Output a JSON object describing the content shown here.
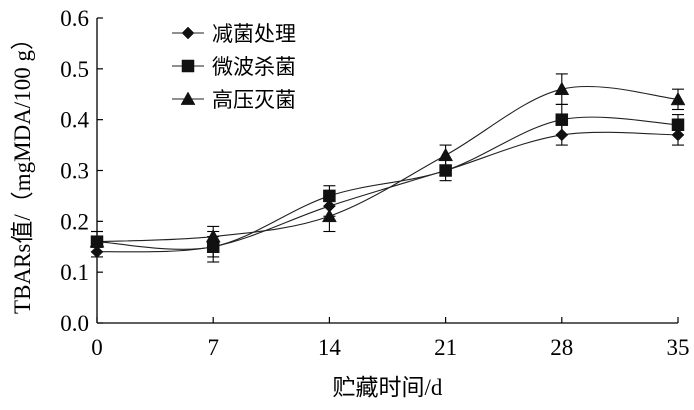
{
  "chart_data": {
    "type": "line",
    "x": [
      0,
      7,
      14,
      21,
      28,
      35
    ],
    "xlabel": "贮藏时间/d",
    "ylabel": "TBARs值/（mgMDA/100 g）",
    "xlim": [
      0,
      35
    ],
    "ylim": [
      0.0,
      0.6
    ],
    "xticks": [
      "0",
      "7",
      "14",
      "21",
      "28",
      "35"
    ],
    "yticks": [
      "0.0",
      "0.1",
      "0.2",
      "0.3",
      "0.4",
      "0.5",
      "0.6"
    ],
    "legend_position": "top-left",
    "grid": false,
    "series": [
      {
        "name": "减菌处理",
        "marker": "diamond",
        "values": [
          0.14,
          0.15,
          0.23,
          0.3,
          0.37,
          0.37
        ],
        "errors": [
          0.01,
          0.02,
          0.02,
          0.01,
          0.02,
          0.02
        ]
      },
      {
        "name": "微波杀菌",
        "marker": "square",
        "values": [
          0.16,
          0.15,
          0.25,
          0.3,
          0.4,
          0.39
        ],
        "errors": [
          0.02,
          0.03,
          0.02,
          0.02,
          0.03,
          0.02
        ]
      },
      {
        "name": "高压灭菌",
        "marker": "triangle",
        "values": [
          0.16,
          0.17,
          0.21,
          0.33,
          0.46,
          0.44
        ],
        "errors": [
          0.02,
          0.02,
          0.03,
          0.02,
          0.03,
          0.02
        ]
      }
    ]
  }
}
